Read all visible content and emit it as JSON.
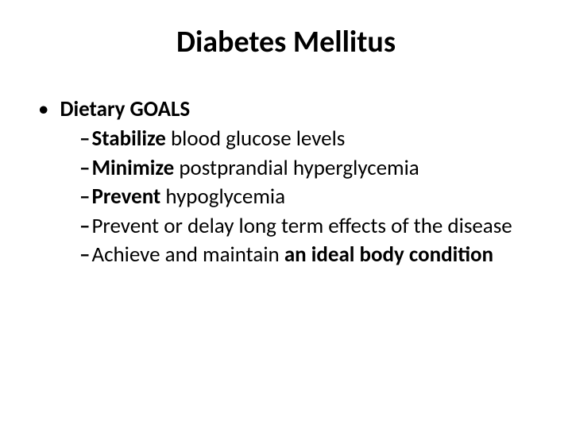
{
  "title": "Diabetes Mellitus",
  "level1_label": "Dietary GOALS",
  "goals": [
    {
      "bold": "Stabilize",
      "rest": " blood glucose levels"
    },
    {
      "bold": "Minimize",
      "rest": " postprandial hyperglycemia"
    },
    {
      "bold": "Prevent",
      "rest": " hypoglycemia"
    },
    {
      "bold": "",
      "rest": "Prevent or delay long term effects of the disease"
    },
    {
      "bold_prefix": "",
      "rest_prefix": "Achieve and maintain ",
      "bold_suffix": "an ideal body condition"
    }
  ],
  "colors": {
    "background": "#ffffff",
    "text": "#000000"
  },
  "fontsize": {
    "title": 38,
    "body": 27
  }
}
